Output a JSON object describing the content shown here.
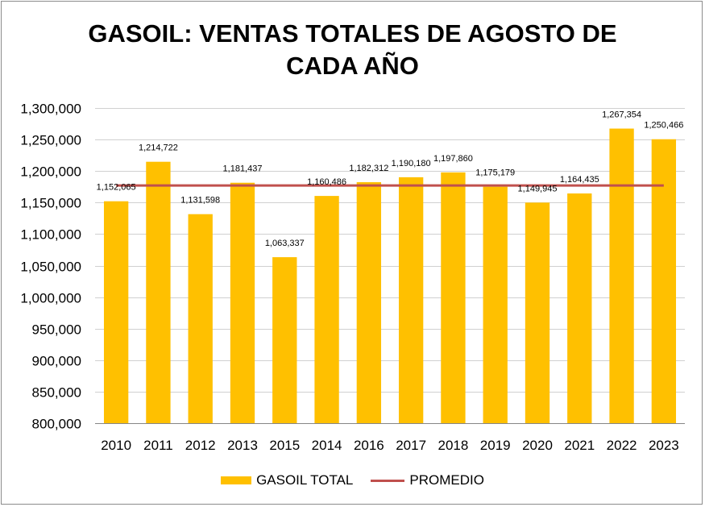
{
  "chart_data": {
    "type": "bar",
    "title_lines": [
      "GASOIL: VENTAS TOTALES DE AGOSTO DE",
      "CADA AÑO"
    ],
    "categories": [
      "2010",
      "2011",
      "2012",
      "2013",
      "2015",
      "2014",
      "2016",
      "2017",
      "2018",
      "2019",
      "2020",
      "2021",
      "2022",
      "2023"
    ],
    "series": [
      {
        "name": "GASOIL TOTAL",
        "kind": "bar",
        "color": "#ffc000",
        "values": [
          1152065,
          1214722,
          1131598,
          1181437,
          1063337,
          1160486,
          1182312,
          1190180,
          1197860,
          1175179,
          1149945,
          1164435,
          1267354,
          1250466
        ],
        "labels": [
          "1,152,065",
          "1,214,722",
          "1,131,598",
          "1,181,437",
          "1,063,337",
          "1,160,486",
          "1,182,312",
          "1,190,180",
          "1,197,860",
          "1,175,179",
          "1,149,945",
          "1,164,435",
          "1,267,354",
          "1,250,466"
        ]
      },
      {
        "name": "PROMEDIO",
        "kind": "line",
        "color": "#c0504d",
        "value": 1177000
      }
    ],
    "ylim": [
      800000,
      1300000
    ],
    "yticks": [
      800000,
      850000,
      900000,
      950000,
      1000000,
      1050000,
      1100000,
      1150000,
      1200000,
      1250000,
      1300000
    ],
    "ytick_labels": [
      "800,000",
      "850,000",
      "900,000",
      "950,000",
      "1,000,000",
      "1,050,000",
      "1,100,000",
      "1,150,000",
      "1,200,000",
      "1,250,000",
      "1,300,000"
    ],
    "grid": true,
    "legend_position": "bottom",
    "xlabel": "",
    "ylabel": ""
  }
}
